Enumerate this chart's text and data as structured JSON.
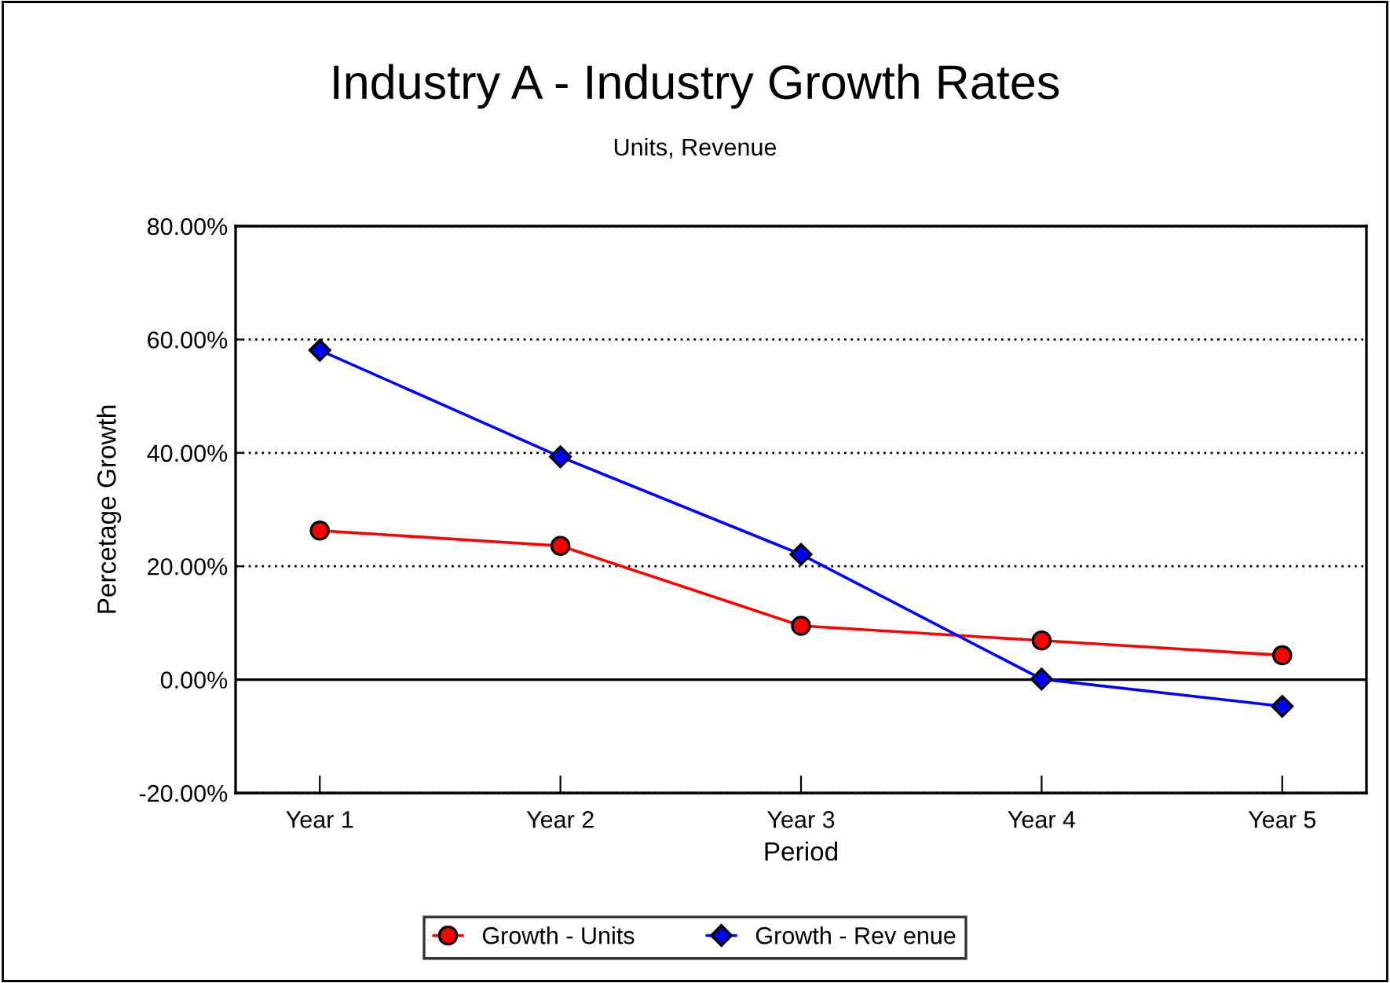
{
  "chart_data": {
    "type": "line",
    "title": "Industry A - Industry Growth Rates",
    "subtitle": "Units, Revenue",
    "xlabel": "Period",
    "ylabel": "Percetage Growth",
    "categories": [
      "Year 1",
      "Year 2",
      "Year 3",
      "Year 4",
      "Year 5"
    ],
    "series": [
      {
        "name": "Growth - Units",
        "color": "#ff0000",
        "marker": "circle",
        "values": [
          26.3,
          23.6,
          9.5,
          6.9,
          4.3
        ]
      },
      {
        "name": "Growth - Rev enue",
        "color": "#0000ff",
        "marker": "diamond",
        "values": [
          58.1,
          39.3,
          22.1,
          0.1,
          -4.7
        ]
      }
    ],
    "ylim": [
      -20,
      80
    ],
    "yticks": [
      {
        "value": -20,
        "label": "-20.00%"
      },
      {
        "value": 0,
        "label": "0.00%"
      },
      {
        "value": 20,
        "label": "20.00%"
      },
      {
        "value": 40,
        "label": "40.00%"
      },
      {
        "value": 60,
        "label": "60.00%"
      },
      {
        "value": 80,
        "label": "80.00%"
      }
    ],
    "grid": "y",
    "line_style": "solid",
    "legend": "bottom"
  }
}
